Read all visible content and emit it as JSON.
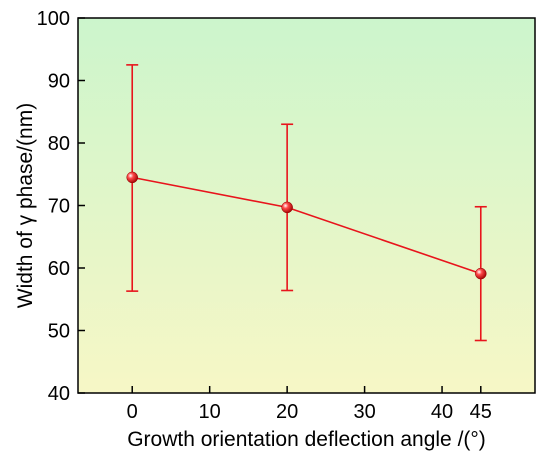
{
  "chart_data": {
    "type": "line",
    "title": "",
    "xlabel": "Growth orientation deflection angle /(°)",
    "ylabel": "Width of γ phase/(nm)",
    "xlim": [
      -7,
      52
    ],
    "ylim": [
      40,
      100
    ],
    "x_ticks": [
      0,
      10,
      20,
      30,
      40,
      45
    ],
    "y_ticks": [
      40,
      50,
      60,
      70,
      80,
      90,
      100
    ],
    "grid": false,
    "legend": "none",
    "background_gradient": {
      "top": "#ccf5cc",
      "bottom": "#f7f7c6"
    },
    "series": [
      {
        "color": "#e8141c",
        "marker": "sphere",
        "points": [
          {
            "x": 0,
            "y": 74.5,
            "err_low": 56.3,
            "err_high": 92.5
          },
          {
            "x": 20,
            "y": 69.7,
            "err_low": 56.4,
            "err_high": 83.0
          },
          {
            "x": 45,
            "y": 59.1,
            "err_low": 48.4,
            "err_high": 69.8
          }
        ]
      }
    ]
  }
}
